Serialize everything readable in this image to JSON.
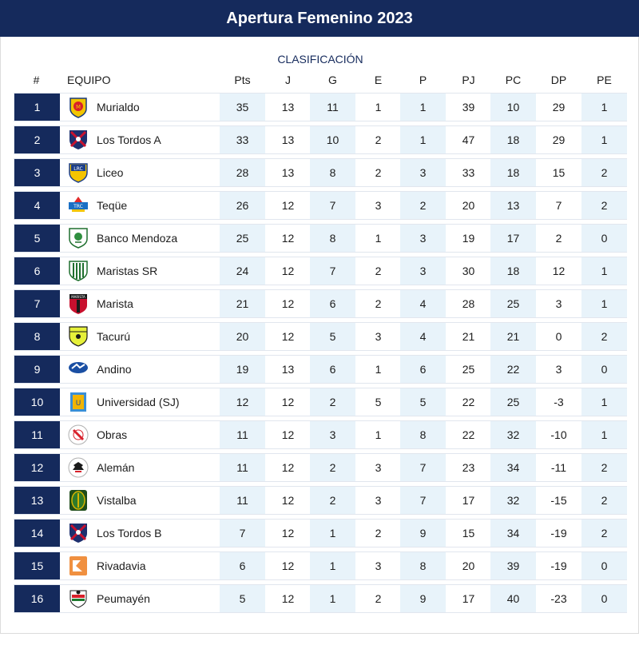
{
  "header": {
    "title": "Apertura Femenino 2023"
  },
  "table": {
    "subtitle": "CLASIFICACIÓN",
    "columns": [
      "#",
      "EQUIPO",
      "Pts",
      "J",
      "G",
      "E",
      "P",
      "PJ",
      "PC",
      "DP",
      "PE"
    ],
    "rows": [
      {
        "pos": "1",
        "team": "Murialdo",
        "logo": "murialdo-crest-icon",
        "pts": "35",
        "j": "13",
        "g": "11",
        "e": "1",
        "p": "1",
        "pj": "39",
        "pc": "10",
        "dp": "29",
        "pe": "1"
      },
      {
        "pos": "2",
        "team": "Los Tordos A",
        "logo": "los-tordos-crest-icon",
        "pts": "33",
        "j": "13",
        "g": "10",
        "e": "2",
        "p": "1",
        "pj": "47",
        "pc": "18",
        "dp": "29",
        "pe": "1"
      },
      {
        "pos": "3",
        "team": "Liceo",
        "logo": "liceo-crest-icon",
        "pts": "28",
        "j": "13",
        "g": "8",
        "e": "2",
        "p": "3",
        "pj": "33",
        "pc": "18",
        "dp": "15",
        "pe": "2"
      },
      {
        "pos": "4",
        "team": "Teqüe",
        "logo": "teque-crest-icon",
        "pts": "26",
        "j": "12",
        "g": "7",
        "e": "3",
        "p": "2",
        "pj": "20",
        "pc": "13",
        "dp": "7",
        "pe": "2"
      },
      {
        "pos": "5",
        "team": "Banco Mendoza",
        "logo": "banco-mendoza-crest-icon",
        "pts": "25",
        "j": "12",
        "g": "8",
        "e": "1",
        "p": "3",
        "pj": "19",
        "pc": "17",
        "dp": "2",
        "pe": "0"
      },
      {
        "pos": "6",
        "team": "Maristas SR",
        "logo": "maristas-sr-crest-icon",
        "pts": "24",
        "j": "12",
        "g": "7",
        "e": "2",
        "p": "3",
        "pj": "30",
        "pc": "18",
        "dp": "12",
        "pe": "1"
      },
      {
        "pos": "7",
        "team": "Marista",
        "logo": "marista-crest-icon",
        "pts": "21",
        "j": "12",
        "g": "6",
        "e": "2",
        "p": "4",
        "pj": "28",
        "pc": "25",
        "dp": "3",
        "pe": "1"
      },
      {
        "pos": "8",
        "team": "Tacurú",
        "logo": "tacuru-crest-icon",
        "pts": "20",
        "j": "12",
        "g": "5",
        "e": "3",
        "p": "4",
        "pj": "21",
        "pc": "21",
        "dp": "0",
        "pe": "2"
      },
      {
        "pos": "9",
        "team": "Andino",
        "logo": "andino-crest-icon",
        "pts": "19",
        "j": "13",
        "g": "6",
        "e": "1",
        "p": "6",
        "pj": "25",
        "pc": "22",
        "dp": "3",
        "pe": "0"
      },
      {
        "pos": "10",
        "team": "Universidad (SJ)",
        "logo": "universidad-sj-crest-icon",
        "pts": "12",
        "j": "12",
        "g": "2",
        "e": "5",
        "p": "5",
        "pj": "22",
        "pc": "25",
        "dp": "-3",
        "pe": "1"
      },
      {
        "pos": "11",
        "team": "Obras",
        "logo": "obras-crest-icon",
        "pts": "11",
        "j": "12",
        "g": "3",
        "e": "1",
        "p": "8",
        "pj": "22",
        "pc": "32",
        "dp": "-10",
        "pe": "1"
      },
      {
        "pos": "12",
        "team": "Alemán",
        "logo": "aleman-crest-icon",
        "pts": "11",
        "j": "12",
        "g": "2",
        "e": "3",
        "p": "7",
        "pj": "23",
        "pc": "34",
        "dp": "-11",
        "pe": "2"
      },
      {
        "pos": "13",
        "team": "Vistalba",
        "logo": "vistalba-crest-icon",
        "pts": "11",
        "j": "12",
        "g": "2",
        "e": "3",
        "p": "7",
        "pj": "17",
        "pc": "32",
        "dp": "-15",
        "pe": "2"
      },
      {
        "pos": "14",
        "team": "Los Tordos B",
        "logo": "los-tordos-crest-icon",
        "pts": "7",
        "j": "12",
        "g": "1",
        "e": "2",
        "p": "9",
        "pj": "15",
        "pc": "34",
        "dp": "-19",
        "pe": "2"
      },
      {
        "pos": "15",
        "team": "Rivadavia",
        "logo": "rivadavia-crest-icon",
        "pts": "6",
        "j": "12",
        "g": "1",
        "e": "3",
        "p": "8",
        "pj": "20",
        "pc": "39",
        "dp": "-19",
        "pe": "0"
      },
      {
        "pos": "16",
        "team": "Peumayén",
        "logo": "peumayen-crest-icon",
        "pts": "5",
        "j": "12",
        "g": "1",
        "e": "2",
        "p": "9",
        "pj": "17",
        "pc": "40",
        "dp": "-23",
        "pe": "0"
      }
    ]
  },
  "colors": {
    "navy": "#152a5c",
    "shade": "#e8f3fa",
    "border": "#e1e6ee"
  }
}
